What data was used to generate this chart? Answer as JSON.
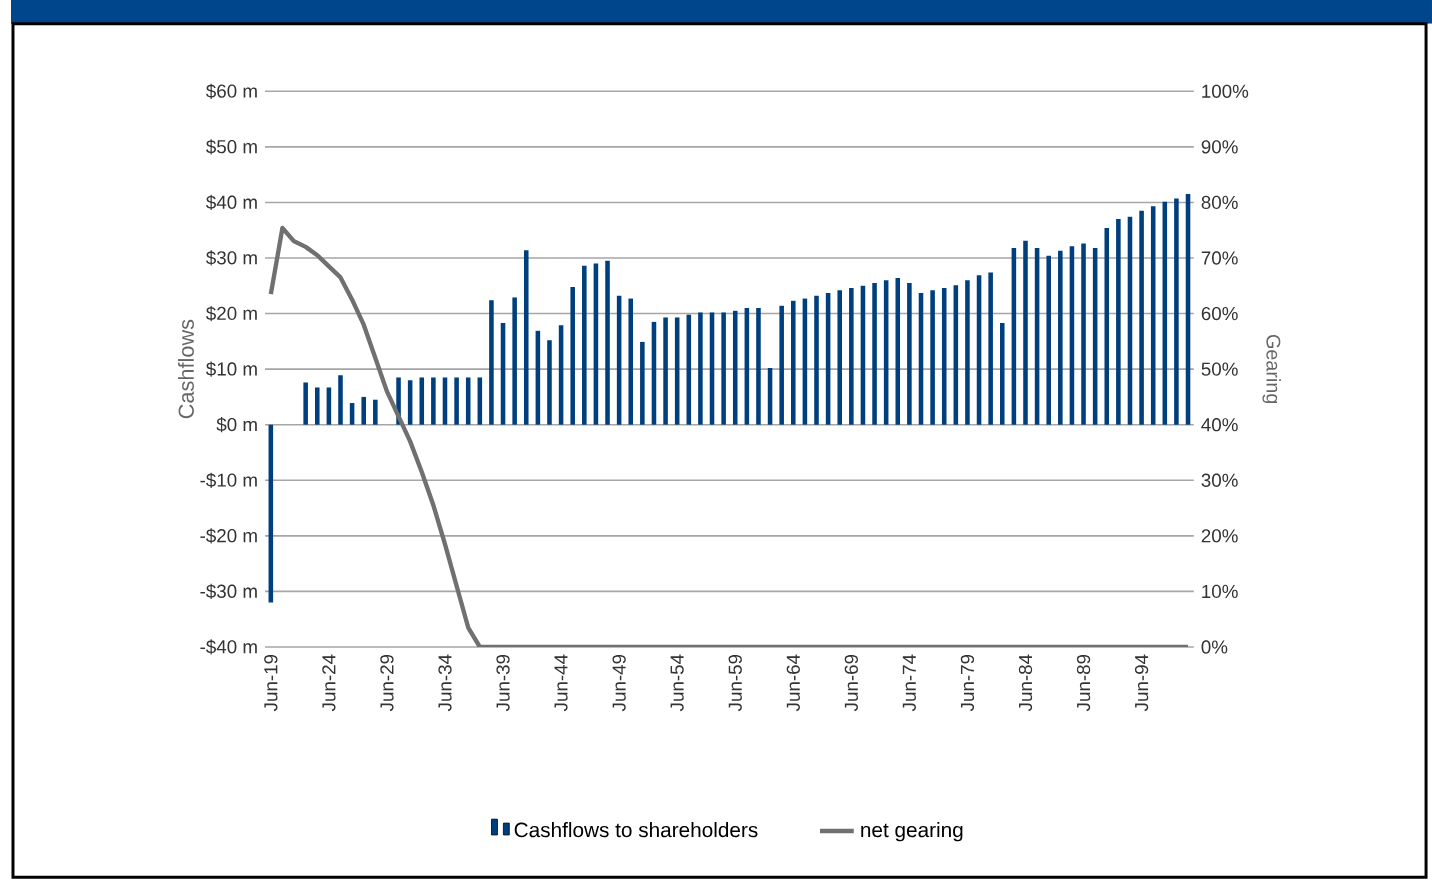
{
  "chart_data": {
    "type": "bar",
    "categories": [
      "Jun-19",
      null,
      null,
      null,
      null,
      "Jun-24",
      null,
      null,
      null,
      null,
      "Jun-29",
      null,
      null,
      null,
      null,
      "Jun-34",
      null,
      null,
      null,
      null,
      "Jun-39",
      null,
      null,
      null,
      null,
      "Jun-44",
      null,
      null,
      null,
      null,
      "Jun-49",
      null,
      null,
      null,
      null,
      "Jun-54",
      null,
      null,
      null,
      null,
      "Jun-59",
      null,
      null,
      null,
      null,
      "Jun-64",
      null,
      null,
      null,
      null,
      "Jun-69",
      null,
      null,
      null,
      null,
      "Jun-74",
      null,
      null,
      null,
      null,
      "Jun-79",
      null,
      null,
      null,
      null,
      "Jun-84",
      null,
      null,
      null,
      null,
      "Jun-89",
      null,
      null,
      null,
      null,
      "Jun-94",
      null,
      null,
      null,
      null
    ],
    "series": [
      {
        "name": "Cashflows to shareholders",
        "color": "#003f7d",
        "values": [
          -32,
          0,
          0,
          7.6,
          6.7,
          6.7,
          8.9,
          3.9,
          5.0,
          4.5,
          null,
          8.5,
          8.0,
          8.5,
          8.5,
          8.5,
          8.5,
          8.5,
          8.5,
          22.4,
          18.3,
          22.9,
          31.4,
          16.9,
          15.2,
          17.9,
          24.8,
          28.6,
          29.0,
          29.5,
          23.2,
          22.7,
          14.9,
          18.5,
          19.3,
          19.3,
          19.8,
          20.2,
          20.2,
          20.2,
          20.5,
          21.0,
          21.0,
          10.2,
          21.4,
          22.3,
          22.7,
          23.2,
          23.7,
          24.2,
          24.6,
          25.0,
          25.5,
          26.0,
          26.4,
          25.5,
          23.7,
          24.2,
          24.6,
          25.1,
          26.0,
          26.9,
          27.4,
          18.3,
          31.8,
          33.1,
          31.8,
          30.4,
          31.3,
          32.1,
          32.6,
          31.8,
          35.4,
          37.0,
          37.4,
          38.5,
          39.3,
          40.1,
          40.7,
          41.5
        ]
      },
      {
        "name": "net gearing",
        "type": "line",
        "axis": "y2",
        "color": "#707070",
        "values": [
          63.5,
          75.4,
          73,
          72,
          70.5,
          68.5,
          66.5,
          62.5,
          58,
          52,
          46,
          41.5,
          37,
          31.5,
          25.5,
          18.5,
          11,
          3.5,
          0,
          0,
          0,
          0,
          0,
          0,
          0,
          0,
          0,
          0,
          0,
          0,
          0,
          0,
          0,
          0,
          0,
          0,
          0,
          0,
          0,
          0,
          0,
          0,
          0,
          0,
          0,
          0,
          0,
          0,
          0,
          0,
          0,
          0,
          0,
          0,
          0,
          0,
          0,
          0,
          0,
          0,
          0,
          0,
          0,
          0,
          0,
          0,
          0,
          0,
          0,
          0,
          0,
          0,
          0,
          0,
          0,
          0,
          0,
          0,
          0,
          0
        ]
      }
    ],
    "ylabel": "Cashflows",
    "y2label": "Gearing",
    "ylim": [
      -40,
      60
    ],
    "yticks": [
      {
        "value": -40,
        "label": "-$40 m"
      },
      {
        "value": -30,
        "label": "-$30 m"
      },
      {
        "value": -20,
        "label": "-$20 m"
      },
      {
        "value": -10,
        "label": "-$10 m"
      },
      {
        "value": 0,
        "label": "$0 m"
      },
      {
        "value": 10,
        "label": "$10 m"
      },
      {
        "value": 20,
        "label": "$20 m"
      },
      {
        "value": 30,
        "label": "$30 m"
      },
      {
        "value": 40,
        "label": "$40 m"
      },
      {
        "value": 50,
        "label": "$50 m"
      },
      {
        "value": 60,
        "label": "$60 m"
      }
    ],
    "y2lim": [
      0,
      100
    ],
    "y2ticks": [
      {
        "value": 0,
        "label": "0%"
      },
      {
        "value": 10,
        "label": "10%"
      },
      {
        "value": 20,
        "label": "20%"
      },
      {
        "value": 30,
        "label": "30%"
      },
      {
        "value": 40,
        "label": "40%"
      },
      {
        "value": 50,
        "label": "50%"
      },
      {
        "value": 60,
        "label": "60%"
      },
      {
        "value": 70,
        "label": "70%"
      },
      {
        "value": 80,
        "label": "80%"
      },
      {
        "value": 90,
        "label": "90%"
      },
      {
        "value": 100,
        "label": "100%"
      }
    ],
    "grid": "y",
    "legend": "bottom"
  }
}
